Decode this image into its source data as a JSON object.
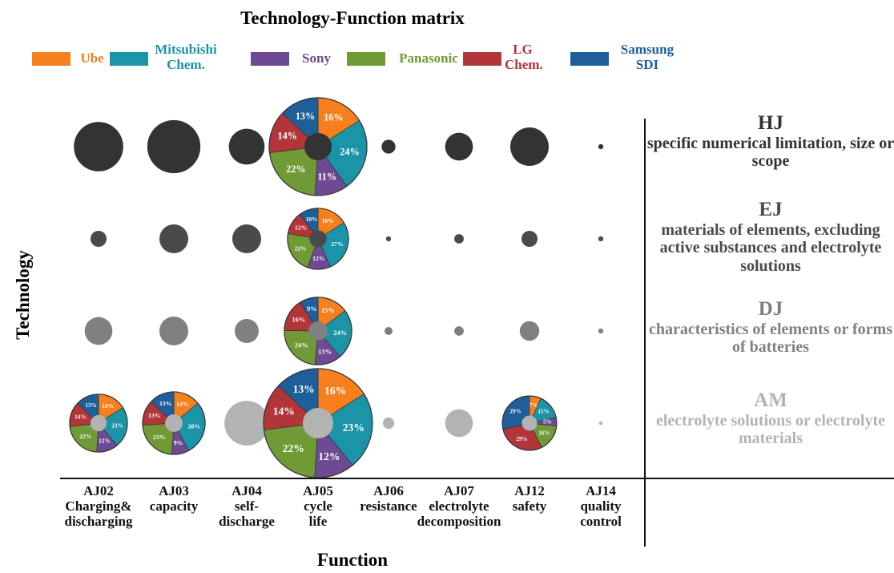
{
  "chart_data": {
    "type": "bubble-matrix",
    "title": "Technology-Function matrix",
    "xlabel": "Function",
    "ylabel": "Technology",
    "series": [
      {
        "name": "Ube",
        "color": "#f7801e"
      },
      {
        "name": "Mitsubishi Chem.",
        "color": "#1b94a8"
      },
      {
        "name": "Sony",
        "color": "#6d4a93"
      },
      {
        "name": "Panasonic",
        "color": "#6f9a35"
      },
      {
        "name": "LG Chem.",
        "color": "#b2353a"
      },
      {
        "name": "Samsung SDI",
        "color": "#1e5f9a"
      }
    ],
    "columns": [
      {
        "code": "AJ02",
        "label": "Charging& discharging"
      },
      {
        "code": "AJ03",
        "label": "capacity"
      },
      {
        "code": "AJ04",
        "label": "self-discharge"
      },
      {
        "code": "AJ05",
        "label": "cycle life"
      },
      {
        "code": "AJ06",
        "label": "resistance"
      },
      {
        "code": "AJ07",
        "label": "electrolyte decomposition"
      },
      {
        "code": "AJ12",
        "label": "safety"
      },
      {
        "code": "AJ14",
        "label": "quality control"
      }
    ],
    "rows": [
      {
        "code": "HJ",
        "label": "specific numerical limitation, size or scope",
        "color": "#333333"
      },
      {
        "code": "EJ",
        "label": "materials of elements, excluding active substances and electrolyte solutions",
        "color": "#4a4a4a"
      },
      {
        "code": "DJ",
        "label": "characteristics of elements or forms of batteries",
        "color": "#808080"
      },
      {
        "code": "AM",
        "label": "electrolyte solutions or electrolyte materials",
        "color": "#b3b3b3"
      }
    ],
    "sizes": [
      [
        38,
        44,
        20,
        149,
        3,
        12,
        23,
        0.4
      ],
      [
        4,
        13,
        13,
        58,
        0.4,
        1.4,
        4,
        0.4
      ],
      [
        12,
        13,
        9,
        71,
        1,
        1.4,
        6,
        0.4
      ],
      [
        52,
        61,
        31,
        185,
        2,
        12,
        46,
        0.2
      ]
    ],
    "pies": [
      [
        null,
        null,
        null,
        {
          "values": [
            16,
            24,
            11,
            22,
            14,
            13
          ],
          "value_labels": [
            "16%",
            "24%",
            "11%",
            "22%",
            "14%",
            "13%"
          ]
        },
        null,
        null,
        null,
        null
      ],
      [
        null,
        null,
        null,
        {
          "values": [
            16,
            27,
            12,
            22,
            12,
            10
          ],
          "value_labels": [
            "16%",
            "27%",
            "12%",
            "22%",
            "12%",
            "10%"
          ]
        },
        null,
        null,
        null,
        null
      ],
      [
        null,
        null,
        null,
        {
          "values": [
            15,
            24,
            13,
            24,
            16,
            9
          ],
          "value_labels": [
            "15%",
            "24%",
            "13%",
            "24%",
            "16%",
            "9%"
          ]
        },
        null,
        null,
        null,
        null
      ],
      [
        {
          "values": [
            16,
            23,
            12,
            22,
            14,
            13
          ],
          "value_labels": [
            "16%",
            "23%",
            "12%",
            "22%",
            "14%",
            "13%"
          ]
        },
        {
          "values": [
            14,
            28,
            9,
            23,
            13,
            13
          ],
          "value_labels": [
            "14%",
            "28%",
            "9%",
            "23%",
            "13%",
            "13%"
          ]
        },
        null,
        {
          "values": [
            16,
            23,
            12,
            22,
            14,
            13
          ],
          "value_labels": [
            "16%",
            "23%",
            "12%",
            "22%",
            "14%",
            "13%"
          ]
        },
        null,
        null,
        {
          "values": [
            7,
            15,
            5,
            16,
            29,
            29
          ],
          "value_labels": [
            "7%",
            "15%",
            "5%",
            "16%",
            "29%",
            "29%"
          ]
        },
        null
      ]
    ]
  }
}
